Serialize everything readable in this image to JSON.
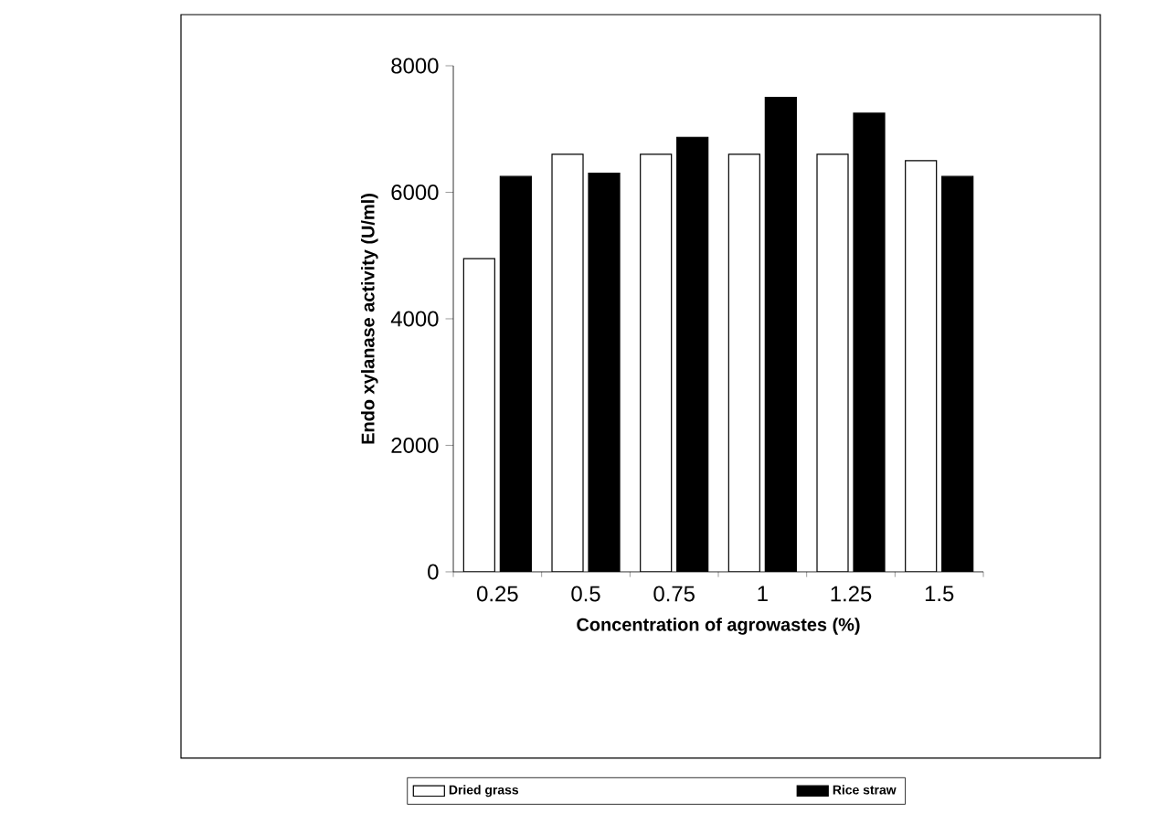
{
  "chart_data": {
    "type": "bar",
    "xlabel": "Concentration of agrowastes (%)",
    "ylabel": "Endo xylanase activity (U/ml)",
    "categories": [
      "0.25",
      "0.5",
      "0.75",
      "1",
      "1.25",
      "1.5"
    ],
    "series": [
      {
        "name": "Dried grass",
        "color": "#ffffff",
        "values": [
          4950,
          6600,
          6600,
          6600,
          6600,
          6500
        ]
      },
      {
        "name": "Rice straw",
        "color": "#000000",
        "values": [
          6250,
          6300,
          6870,
          7500,
          7250,
          6250
        ]
      }
    ],
    "ylim": [
      0,
      8000
    ],
    "yticks": [
      0,
      2000,
      4000,
      6000,
      8000
    ],
    "grid": false,
    "legend": "bottom"
  }
}
